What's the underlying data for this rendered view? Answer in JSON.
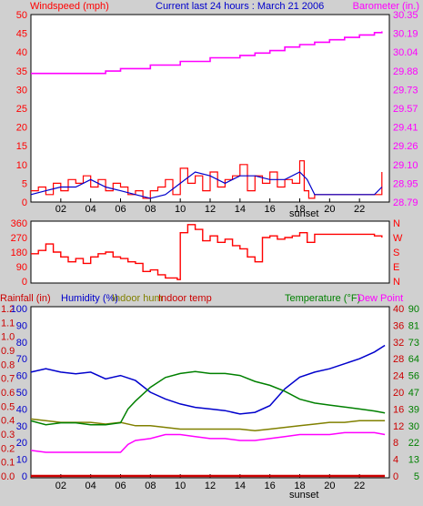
{
  "chart_data": [
    {
      "type": "line",
      "title": "Current last 24 hours : March 21 2006",
      "ylabel": "Windspeed (mph)",
      "ylabel_right": "Barometer (in.)",
      "x_ticks": [
        "02",
        "04",
        "06",
        "08",
        "10",
        "12",
        "14",
        "16",
        "18",
        "20",
        "22"
      ],
      "annotation": "sunset",
      "ylim": [
        0,
        50
      ],
      "y_ticks": [
        "0",
        "5",
        "10",
        "15",
        "20",
        "25",
        "30",
        "35",
        "40",
        "45",
        "50"
      ],
      "ylim_right": [
        28.79,
        30.35
      ],
      "y_ticks_right": [
        "28.79",
        "28.95",
        "29.10",
        "29.26",
        "29.41",
        "29.57",
        "29.73",
        "29.88",
        "30.04",
        "30.19",
        "30.35"
      ],
      "grid": false,
      "colors": {
        "wind": "#ff0000",
        "avg_wind": "#0000cc",
        "barometer": "#ff00ff"
      },
      "series": [
        {
          "axis": "left",
          "color": "#ff0000",
          "x": [
            0,
            0.5,
            1,
            1.5,
            2,
            2.5,
            3,
            3.5,
            4,
            4.5,
            5,
            5.5,
            6,
            6.5,
            7,
            7.5,
            8,
            8.5,
            9,
            9.5,
            10,
            10.5,
            11,
            11.5,
            12,
            12.5,
            13,
            13.5,
            14,
            14.5,
            15,
            15.5,
            16,
            16.5,
            17,
            17.5,
            18,
            18.3,
            18.6,
            19,
            19.5,
            20,
            20.5,
            21,
            21.5,
            22,
            22.5,
            23,
            23.5
          ],
          "values": [
            3,
            4,
            2,
            5,
            3,
            6,
            5,
            7,
            4,
            6,
            3,
            5,
            4,
            2,
            3,
            1,
            3,
            4,
            6,
            2,
            9,
            5,
            7,
            3,
            8,
            4,
            6,
            7,
            10,
            3,
            7,
            5,
            8,
            4,
            6,
            5,
            11,
            3,
            1,
            2,
            2,
            2,
            2,
            2,
            2,
            2,
            2,
            2,
            8
          ]
        },
        {
          "axis": "left",
          "color": "#0000cc",
          "x": [
            0,
            1,
            2,
            3,
            4,
            5,
            6,
            7,
            8,
            9,
            10,
            11,
            12,
            13,
            14,
            15,
            16,
            17,
            18,
            18.5,
            19,
            20,
            21,
            22,
            23,
            23.5
          ],
          "values": [
            2,
            3,
            4,
            4,
            6,
            4,
            3,
            2,
            1,
            2,
            5,
            8,
            7,
            5,
            7,
            7,
            6,
            6,
            8,
            6,
            2,
            2,
            2,
            2,
            2,
            4
          ]
        },
        {
          "axis": "right",
          "color": "#ff00ff",
          "x": [
            0,
            5,
            5,
            6,
            8,
            10,
            12,
            14,
            15,
            16,
            17,
            18,
            19,
            20,
            21,
            22,
            23,
            23.5
          ],
          "values": [
            29.86,
            29.86,
            29.88,
            29.9,
            29.93,
            29.96,
            29.99,
            30.01,
            30.03,
            30.05,
            30.08,
            30.1,
            30.12,
            30.14,
            30.16,
            30.18,
            30.2,
            30.21
          ]
        }
      ]
    },
    {
      "type": "line",
      "x_ticks": [
        "02",
        "04",
        "06",
        "08",
        "10",
        "12",
        "14",
        "16",
        "18",
        "20",
        "22"
      ],
      "ylim": [
        0,
        360
      ],
      "y_ticks": [
        "0",
        "90",
        "180",
        "270",
        "360"
      ],
      "y_ticks_right": [
        "N",
        "E",
        "S",
        "W",
        "N"
      ],
      "grid": false,
      "series": [
        {
          "color": "#ff0000",
          "x": [
            0,
            0.5,
            1,
            1.5,
            2,
            2.5,
            3,
            3.5,
            4,
            4.5,
            5,
            5.5,
            6,
            6.5,
            7,
            7.5,
            8,
            8.5,
            9,
            9.5,
            9.8,
            10,
            10.5,
            11,
            11.5,
            12,
            12.5,
            13,
            13.5,
            14,
            14.5,
            15,
            15.5,
            16,
            16.5,
            17,
            17.5,
            18,
            18.5,
            19,
            19.5,
            20,
            20.5,
            21,
            21.5,
            22,
            22.5,
            23,
            23.5
          ],
          "values": [
            170,
            190,
            230,
            180,
            150,
            120,
            140,
            110,
            150,
            170,
            180,
            150,
            140,
            120,
            110,
            60,
            70,
            40,
            20,
            20,
            10,
            300,
            350,
            320,
            250,
            280,
            240,
            260,
            220,
            200,
            150,
            120,
            270,
            280,
            260,
            270,
            280,
            300,
            240,
            290,
            290,
            290,
            290,
            290,
            290,
            290,
            290,
            280,
            270
          ]
        }
      ]
    },
    {
      "type": "line",
      "annotation": "sunset",
      "x_ticks": [
        "02",
        "04",
        "06",
        "08",
        "10",
        "12",
        "14",
        "16",
        "18",
        "20",
        "22"
      ],
      "legend": [
        "Rainfall (in)",
        "Humidity (%)",
        "Indoor hum",
        "Indoor temp",
        "Temperature (°F)",
        "Dew Point"
      ],
      "y_ticks_rain": [
        "0.0",
        "0.1",
        "0.2",
        "0.3",
        "0.4",
        "0.5",
        "0.6",
        "0.7",
        "0.8",
        "0.9",
        "1.0",
        "1.1",
        "1.2"
      ],
      "ylim_rain": [
        0,
        1.2
      ],
      "y_ticks_humidity": [
        "0",
        "10",
        "20",
        "30",
        "40",
        "50",
        "60",
        "70",
        "80",
        "90",
        "100"
      ],
      "ylim_humidity": [
        0,
        100
      ],
      "y_ticks_temp_c": [
        "0",
        "4",
        "8",
        "12",
        "16",
        "20",
        "24",
        "28",
        "32",
        "36",
        "40"
      ],
      "y_ticks_temp_f": [
        "5",
        "13",
        "22",
        "30",
        "39",
        "47",
        "56",
        "64",
        "73",
        "81",
        "90"
      ],
      "ylim_temp": [
        5,
        90
      ],
      "grid": false,
      "series": [
        {
          "name": "Rainfall (in)",
          "axis": "rain",
          "color": "#cc0000",
          "x": [
            0,
            23.7
          ],
          "values": [
            0.0,
            0.0
          ]
        },
        {
          "name": "Humidity (%)",
          "axis": "humidity",
          "color": "#0000cc",
          "x": [
            0,
            1,
            2,
            3,
            4,
            5,
            6,
            7,
            8,
            9,
            10,
            11,
            12,
            13,
            14,
            15,
            16,
            17,
            18,
            19,
            20,
            21,
            22,
            23,
            23.7
          ],
          "values": [
            62,
            64,
            62,
            61,
            62,
            58,
            60,
            57,
            50,
            46,
            43,
            41,
            40,
            39,
            37,
            38,
            42,
            52,
            59,
            62,
            64,
            67,
            70,
            74,
            78
          ]
        },
        {
          "name": "Indoor hum",
          "axis": "humidity",
          "color": "#808000",
          "x": [
            0,
            1,
            2,
            3,
            4,
            5,
            6,
            7,
            8,
            9,
            10,
            11,
            12,
            13,
            14,
            15,
            16,
            17,
            18,
            19,
            20,
            21,
            22,
            23,
            23.7
          ],
          "values": [
            34,
            33,
            32,
            32,
            32,
            31,
            32,
            30,
            30,
            29,
            28,
            28,
            28,
            28,
            28,
            27,
            28,
            29,
            30,
            31,
            32,
            32,
            33,
            33,
            33
          ]
        },
        {
          "name": "Temperature (°F)",
          "axis": "temp",
          "color": "#008000",
          "x": [
            0,
            1,
            2,
            3,
            4,
            5,
            6,
            6.5,
            7,
            8,
            9,
            10,
            11,
            12,
            13,
            14,
            15,
            16,
            17,
            18,
            19,
            20,
            21,
            22,
            23,
            23.7
          ],
          "values": [
            33,
            31,
            32,
            32,
            31,
            31,
            32,
            39,
            43,
            50,
            55,
            57,
            58,
            57,
            57,
            56,
            53,
            51,
            48,
            44,
            42,
            41,
            40,
            39,
            38,
            37
          ]
        },
        {
          "name": "Dew Point",
          "axis": "temp",
          "color": "#ff00ff",
          "x": [
            0,
            1,
            2,
            3,
            4,
            5,
            6,
            6.5,
            7,
            8,
            9,
            10,
            11,
            12,
            13,
            14,
            15,
            16,
            17,
            18,
            19,
            20,
            21,
            22,
            23,
            23.7
          ],
          "values": [
            18,
            17,
            17,
            17,
            17,
            17,
            17,
            21,
            23,
            24,
            26,
            26,
            25,
            24,
            24,
            23,
            23,
            24,
            25,
            26,
            26,
            26,
            27,
            27,
            27,
            26
          ]
        }
      ]
    }
  ]
}
